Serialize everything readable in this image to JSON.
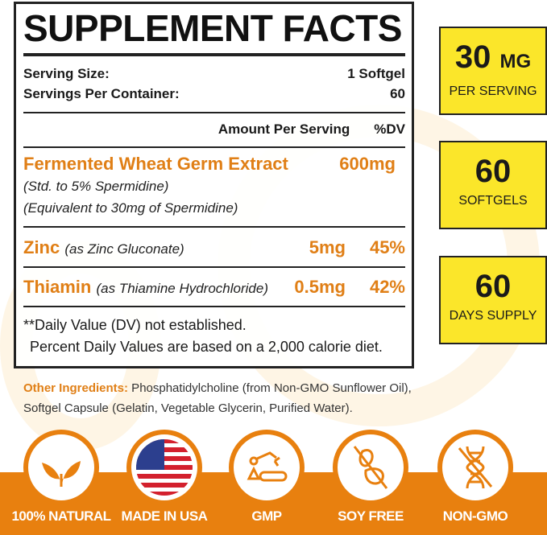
{
  "facts": {
    "title": "SUPPLEMENT FACTS",
    "serving_size_label": "Serving Size:",
    "serving_size_value": "1 Softgel",
    "servings_label": "Servings Per Container:",
    "servings_value": "60",
    "amount_header": "Amount Per Serving",
    "dv_header": "%DV",
    "ingredients": [
      {
        "name": "Fermented Wheat Germ Extract",
        "amount": "600mg",
        "notes": [
          "(Std. to 5% Spermidine)",
          "(Equivalent to 30mg of Spermidine)"
        ]
      },
      {
        "name": "Zinc",
        "detail": "(as Zinc Gluconate)",
        "amount": "5mg",
        "dv": "45%"
      },
      {
        "name": "Thiamin",
        "detail": "(as Thiamine Hydrochloride)",
        "amount": "0.5mg",
        "dv": "42%"
      }
    ],
    "footnote1": "**Daily Value (DV) not established.",
    "footnote2": "Percent Daily Values are based on a 2,000 calorie diet."
  },
  "other": {
    "label": "Other Ingredients:",
    "text": " Phosphatidylcholine (from Non-GMO Sunflower Oil), Softgel Capsule (Gelatin, Vegetable Glycerin, Purified Water)."
  },
  "highlights": [
    {
      "value": "30",
      "unit": "MG",
      "label": "PER SERVING"
    },
    {
      "value": "60",
      "unit": "",
      "label": "SOFTGELS"
    },
    {
      "value": "60",
      "unit": "",
      "label": "DAYS SUPPLY"
    }
  ],
  "badges": [
    {
      "icon": "leaf-icon",
      "label": "100% NATURAL"
    },
    {
      "icon": "usa-flag-icon",
      "label": "MADE IN USA"
    },
    {
      "icon": "factory-robot-icon",
      "label": "GMP"
    },
    {
      "icon": "soybean-crossed-icon",
      "label": "SOY FREE"
    },
    {
      "icon": "dna-crossed-icon",
      "label": "NON-GMO"
    }
  ],
  "colors": {
    "accent": "#e8800f",
    "highlight": "#fbe62a"
  }
}
